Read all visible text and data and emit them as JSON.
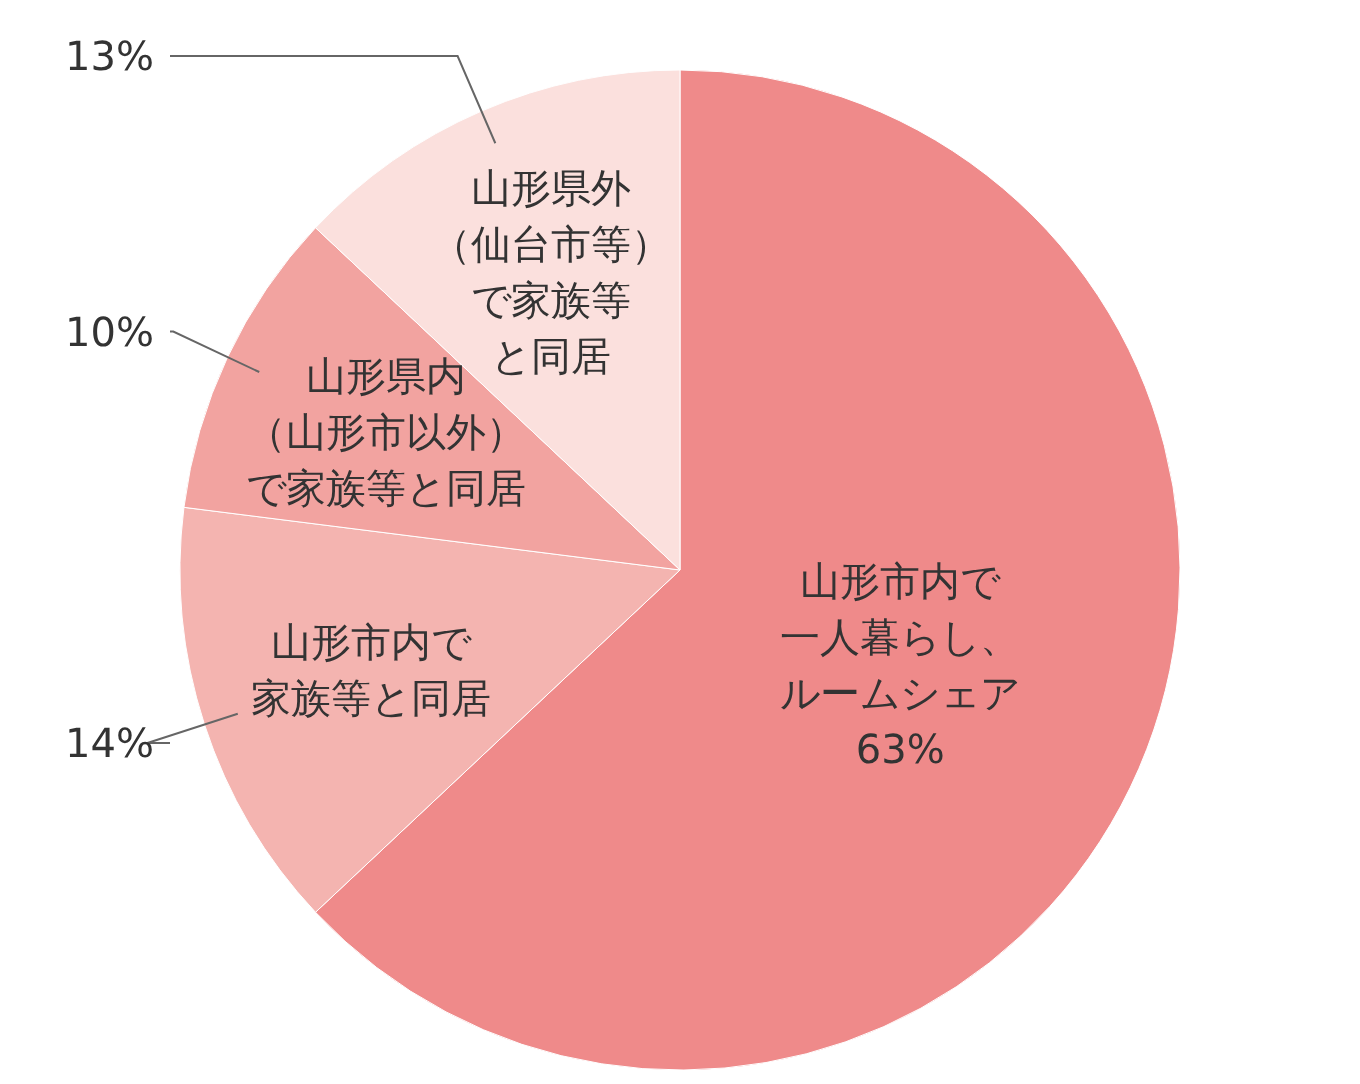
{
  "chart_data": {
    "type": "pie",
    "categories": [
      "山形市内で一人暮らし、ルームシェア",
      "山形市内で家族等と同居",
      "山形県内（山形市以外）で家族等と同居",
      "山形県外（仙台市等）で家族等と同居"
    ],
    "values": [
      63,
      14,
      10,
      13
    ],
    "value_labels": [
      "63%",
      "14%",
      "10%",
      "13%"
    ],
    "colors": [
      "#ef8a8a",
      "#f4b4b0",
      "#f2a3a0",
      "#fbe0dd"
    ]
  }
}
